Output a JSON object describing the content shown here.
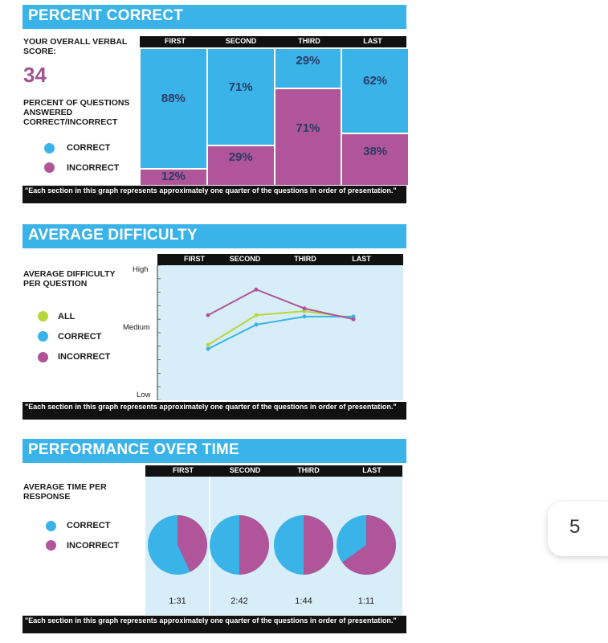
{
  "sections": {
    "percent": {
      "title": "PERCENT CORRECT",
      "score_label": "YOUR OVERALL VERBAL SCORE:",
      "score": "34",
      "desc": "PERCENT OF QUESTIONS ANSWERED CORRECT/INCORRECT",
      "footnote": "\"Each section in this graph represents approximately one quarter of the questions in order of presentation.\""
    },
    "difficulty": {
      "title": "AVERAGE DIFFICULTY",
      "desc": "AVERAGE DIFFICULTY PER QUESTION",
      "footnote": "\"Each section in this graph represents approximately one quarter of the questions in order of presentation.\""
    },
    "time": {
      "title": "PERFORMANCE OVER TIME",
      "desc": "AVERAGE TIME PER RESPONSE",
      "footnote": "\"Each section in this graph represents approximately one quarter of the questions in order of presentation.\""
    }
  },
  "legend": {
    "all": "ALL",
    "correct": "CORRECT",
    "incorrect": "INCORRECT"
  },
  "colors": {
    "banner": "#3ab3e8",
    "correct": "#3ab3e8",
    "incorrect": "#b0559a",
    "all": "#b8d63c",
    "plot_bg": "#d7eef9"
  },
  "page_number": "5",
  "chart_data": [
    {
      "type": "bar",
      "stacked": true,
      "categories": [
        "FIRST",
        "SECOND",
        "THIRD",
        "LAST"
      ],
      "series": [
        {
          "name": "CORRECT",
          "values": [
            88,
            71,
            29,
            62
          ],
          "labels": [
            "88%",
            "71%",
            "29%",
            "62%"
          ]
        },
        {
          "name": "INCORRECT",
          "values": [
            12,
            29,
            71,
            38
          ],
          "labels": [
            "12%",
            "29%",
            "71%",
            "38%"
          ]
        }
      ],
      "ylim": [
        0,
        100
      ]
    },
    {
      "type": "line",
      "categories": [
        "FIRST",
        "SECOND",
        "THIRD",
        "LAST"
      ],
      "y_ticks": [
        "High",
        "Medium",
        "Low"
      ],
      "ylim": [
        0,
        10
      ],
      "series": [
        {
          "name": "ALL",
          "values": [
            4.1,
            6.3,
            6.6,
            6.1
          ]
        },
        {
          "name": "CORRECT",
          "values": [
            3.8,
            5.6,
            6.2,
            6.2
          ]
        },
        {
          "name": "INCORRECT",
          "values": [
            6.3,
            8.2,
            6.8,
            6.0
          ]
        }
      ]
    },
    {
      "type": "pie",
      "categories": [
        "FIRST",
        "SECOND",
        "THIRD",
        "LAST"
      ],
      "times": [
        "1:31",
        "2:42",
        "1:44",
        "1:11"
      ],
      "series": [
        {
          "name": "CORRECT",
          "values": [
            57,
            50,
            50,
            35
          ]
        },
        {
          "name": "INCORRECT",
          "values": [
            43,
            50,
            50,
            65
          ]
        }
      ]
    }
  ]
}
